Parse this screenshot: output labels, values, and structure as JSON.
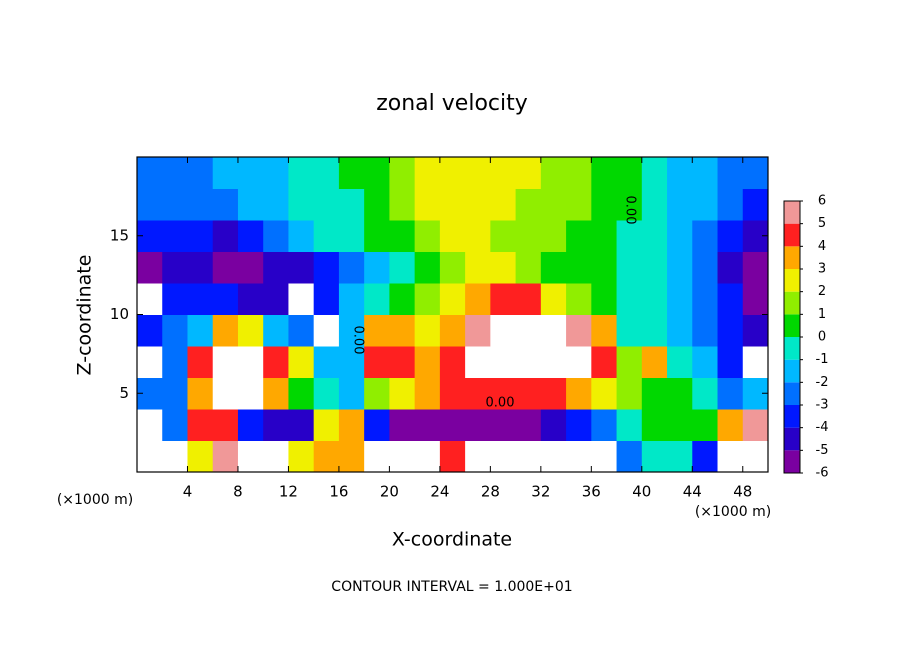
{
  "chart_data": {
    "type": "heatmap",
    "title": "zonal velocity",
    "x_label": "X-coordinate",
    "y_label": "Z-coordinate",
    "x_unit": "(×1000 m)",
    "y_unit": "(×1000 m)",
    "footer": "CONTOUR INTERVAL = 1.000E+01",
    "annotations": [
      "0.00",
      "0.00",
      "0.00"
    ],
    "xlim": [
      0,
      50
    ],
    "ylim": [
      0,
      20
    ],
    "xticks": [
      4,
      8,
      12,
      16,
      20,
      24,
      28,
      32,
      36,
      40,
      44,
      48
    ],
    "yticks": [
      5,
      10,
      15
    ],
    "x": [
      1,
      3,
      5,
      7,
      9,
      11,
      13,
      15,
      17,
      19,
      21,
      23,
      25,
      27,
      29,
      31,
      33,
      35,
      37,
      39,
      41,
      43,
      45,
      47,
      49
    ],
    "y": [
      1,
      3,
      5,
      7,
      9,
      11,
      13,
      15,
      17,
      19
    ],
    "z": [
      [
        -8,
        -8,
        3,
        6,
        -8,
        -8,
        3,
        4,
        4,
        -8,
        8,
        8,
        5,
        -8,
        -8,
        -8,
        -8,
        -8,
        -8,
        -2,
        0,
        0,
        -3,
        -8,
        -8
      ],
      [
        -8,
        -2,
        5,
        5,
        -3,
        -4,
        -4,
        3,
        4,
        -3,
        -5,
        -6,
        -6,
        -5,
        -5,
        -5,
        -4,
        -3,
        -2,
        0,
        1,
        1,
        1,
        4,
        6
      ],
      [
        -2,
        -2,
        4,
        8,
        8,
        4,
        1,
        0,
        -1,
        2,
        3,
        4,
        5,
        5,
        5,
        5,
        5,
        4,
        3,
        2,
        1,
        1,
        0,
        -2,
        -1
      ],
      [
        -8,
        -2,
        5,
        8,
        8,
        5,
        3,
        -1,
        -1,
        5,
        5,
        4,
        5,
        8,
        8,
        8,
        8,
        8,
        5,
        2,
        4,
        0,
        -1,
        -3,
        -8
      ],
      [
        -3,
        -2,
        -1,
        4,
        3,
        -1,
        -2,
        -8,
        -1,
        4,
        4,
        3,
        4,
        6,
        8,
        8,
        8,
        6,
        4,
        0,
        0,
        -1,
        -2,
        -3,
        -4
      ],
      [
        -8,
        -3,
        -3,
        -3,
        -4,
        -4,
        -8,
        -3,
        -1,
        0,
        1,
        2,
        3,
        4,
        5,
        5,
        3,
        2,
        1,
        0,
        0,
        -1,
        -2,
        -3,
        -5
      ],
      [
        -5,
        -4,
        -4,
        -5,
        -5,
        -4,
        -4,
        -3,
        -2,
        -1,
        0,
        1,
        2,
        3,
        3,
        2,
        1,
        1,
        1,
        0,
        0,
        -1,
        -2,
        -4,
        -6
      ],
      [
        -3,
        -3,
        -3,
        -4,
        -3,
        -2,
        -1,
        0,
        0,
        1,
        1,
        2,
        3,
        3,
        2,
        2,
        2,
        1,
        1,
        0,
        0,
        -1,
        -2,
        -3,
        -4
      ],
      [
        -2,
        -2,
        -2,
        -2,
        -1,
        -1,
        0,
        0,
        0,
        1,
        2,
        3,
        3,
        3,
        3,
        2,
        2,
        2,
        1,
        1,
        0,
        -1,
        -1,
        -2,
        -3
      ],
      [
        -2,
        -2,
        -2,
        -1,
        -1,
        -1,
        0,
        0,
        1,
        1,
        2,
        3,
        3,
        3,
        3,
        3,
        2,
        2,
        1,
        1,
        0,
        -1,
        -1,
        -2,
        -2
      ]
    ],
    "colorbar_ticks": [
      -6,
      -5,
      -4,
      -3,
      -2,
      -1,
      0,
      1,
      2,
      3,
      4,
      5,
      6
    ],
    "colors": [
      "#7a00a0",
      "#2800c8",
      "#0018ff",
      "#0070ff",
      "#00b8ff",
      "#00e8c8",
      "#00d800",
      "#90ee00",
      "#f0f000",
      "#ffa800",
      "#ff2020",
      "#f09898"
    ],
    "out_of_range_color": "#ffffff"
  }
}
